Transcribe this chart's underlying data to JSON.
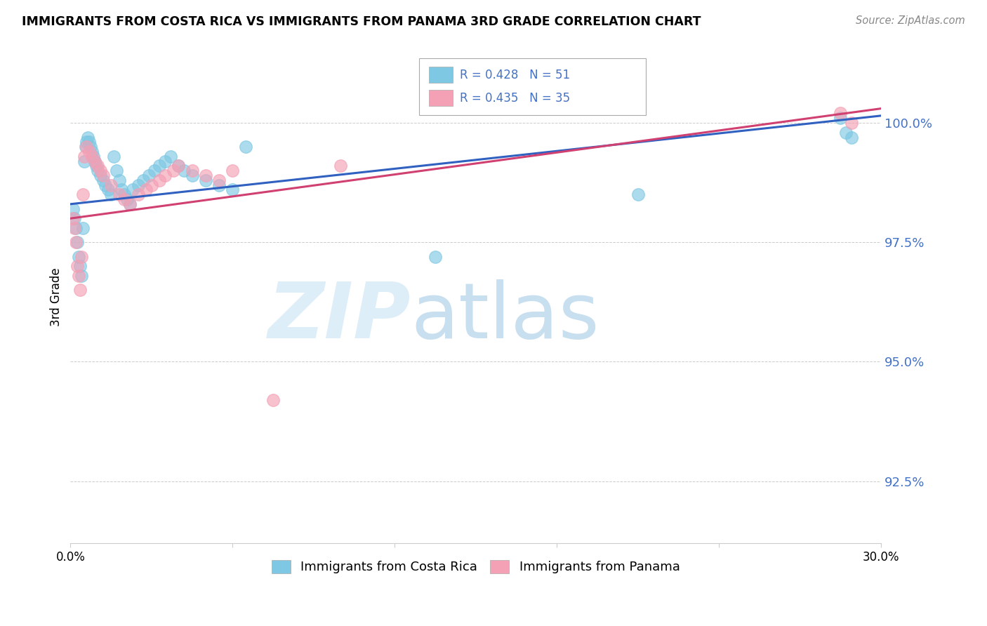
{
  "title": "IMMIGRANTS FROM COSTA RICA VS IMMIGRANTS FROM PANAMA 3RD GRADE CORRELATION CHART",
  "source": "Source: ZipAtlas.com",
  "ylabel": "3rd Grade",
  "xlim": [
    0.0,
    30.0
  ],
  "ylim": [
    91.2,
    101.5
  ],
  "yticks": [
    92.5,
    95.0,
    97.5,
    100.0
  ],
  "ytick_labels": [
    "92.5%",
    "95.0%",
    "97.5%",
    "100.0%"
  ],
  "legend_entries": [
    "Immigrants from Costa Rica",
    "Immigrants from Panama"
  ],
  "costa_rica_R": 0.428,
  "costa_rica_N": 51,
  "panama_R": 0.435,
  "panama_N": 35,
  "blue_color": "#7ec8e3",
  "pink_color": "#f4a0b5",
  "blue_line_color": "#3060c0",
  "pink_line_color": "#d04070",
  "cr_trendline_x": [
    0.0,
    30.0
  ],
  "cr_trendline_y": [
    98.3,
    100.15
  ],
  "pa_trendline_x": [
    0.0,
    30.0
  ],
  "pa_trendline_y": [
    98.0,
    100.3
  ],
  "cr_x": [
    0.1,
    0.15,
    0.2,
    0.25,
    0.3,
    0.35,
    0.4,
    0.45,
    0.5,
    0.55,
    0.6,
    0.65,
    0.7,
    0.75,
    0.8,
    0.85,
    0.9,
    0.95,
    1.0,
    1.1,
    1.2,
    1.3,
    1.4,
    1.5,
    1.6,
    1.7,
    1.8,
    1.9,
    2.0,
    2.1,
    2.2,
    2.3,
    2.5,
    2.7,
    2.9,
    3.1,
    3.3,
    3.5,
    3.7,
    4.0,
    4.2,
    4.5,
    5.0,
    5.5,
    6.0,
    6.5,
    13.5,
    21.0,
    28.5,
    28.7,
    28.9
  ],
  "cr_y": [
    98.2,
    98.0,
    97.8,
    97.5,
    97.2,
    97.0,
    96.8,
    97.8,
    99.2,
    99.5,
    99.6,
    99.7,
    99.6,
    99.5,
    99.4,
    99.3,
    99.2,
    99.1,
    99.0,
    98.9,
    98.8,
    98.7,
    98.6,
    98.5,
    99.3,
    99.0,
    98.8,
    98.6,
    98.5,
    98.4,
    98.3,
    98.6,
    98.7,
    98.8,
    98.9,
    99.0,
    99.1,
    99.2,
    99.3,
    99.1,
    99.0,
    98.9,
    98.8,
    98.7,
    98.6,
    99.5,
    97.2,
    98.5,
    100.1,
    99.8,
    99.7
  ],
  "pa_x": [
    0.1,
    0.15,
    0.2,
    0.25,
    0.3,
    0.35,
    0.4,
    0.45,
    0.5,
    0.6,
    0.7,
    0.8,
    0.9,
    1.0,
    1.1,
    1.2,
    1.5,
    1.8,
    2.0,
    2.2,
    2.5,
    2.8,
    3.0,
    3.3,
    3.5,
    3.8,
    4.0,
    4.5,
    5.0,
    5.5,
    6.0,
    7.5,
    10.0,
    28.5,
    28.9
  ],
  "pa_y": [
    98.0,
    97.8,
    97.5,
    97.0,
    96.8,
    96.5,
    97.2,
    98.5,
    99.3,
    99.5,
    99.4,
    99.3,
    99.2,
    99.1,
    99.0,
    98.9,
    98.7,
    98.5,
    98.4,
    98.3,
    98.5,
    98.6,
    98.7,
    98.8,
    98.9,
    99.0,
    99.1,
    99.0,
    98.9,
    98.8,
    99.0,
    94.2,
    99.1,
    100.2,
    100.0
  ]
}
